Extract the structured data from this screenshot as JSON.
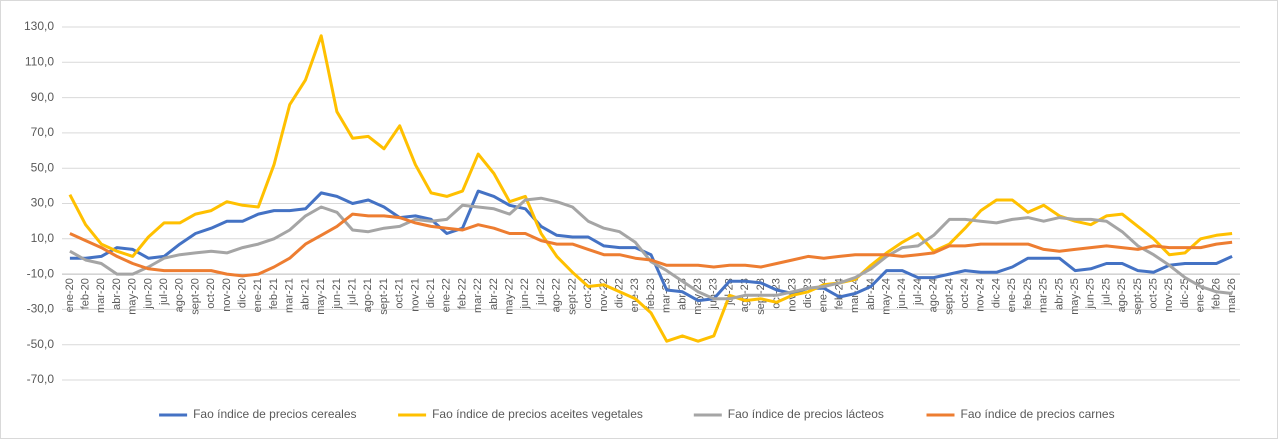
{
  "chart_data": {
    "type": "line",
    "categories": [
      "ene-20",
      "feb-20",
      "mar-20",
      "abr-20",
      "may-20",
      "jun-20",
      "jul-20",
      "ago-20",
      "sept-20",
      "oct-20",
      "nov-20",
      "dic-20",
      "ene-21",
      "feb-21",
      "mar-21",
      "abr-21",
      "may-21",
      "jun-21",
      "jul-21",
      "ago-21",
      "sept-21",
      "oct-21",
      "nov-21",
      "dic-21",
      "ene-22",
      "feb-22",
      "mar-22",
      "abr-22",
      "may-22",
      "jun-22",
      "jul-22",
      "ago-22",
      "sept-22",
      "oct-22",
      "nov-22",
      "dic-22",
      "ene-23",
      "feb-23",
      "mar-23",
      "abr-23",
      "may-23",
      "jun-23",
      "jul-23",
      "ago-23",
      "sept-23",
      "oct-23",
      "nov-23",
      "dic-23",
      "ene-24",
      "feb-24",
      "mar-24",
      "abr-24",
      "may-24",
      "jun-24",
      "jul-24",
      "ago-24",
      "sept-24",
      "oct-24",
      "nov-24",
      "dic-24",
      "ene-25",
      "feb-25",
      "mar-25",
      "abr-25",
      "may-25",
      "jun-25",
      "jul-25",
      "ago-25",
      "sept-25",
      "oct-25",
      "nov-25",
      "dic-25",
      "ene-26",
      "feb-26",
      "mar-26"
    ],
    "series": [
      {
        "name": "Fao índice de precios cereales",
        "color": "#4472c4",
        "values": [
          -1,
          -1,
          0,
          5,
          4,
          -1,
          0,
          7,
          13,
          16,
          20,
          20,
          24,
          26,
          26,
          27,
          36,
          34,
          30,
          32,
          28,
          22,
          23,
          21,
          13,
          16,
          37,
          34,
          29,
          27,
          17,
          12,
          11,
          11,
          6,
          5,
          5,
          1,
          -19,
          -20,
          -25,
          -24,
          -14,
          -14,
          -15,
          -19,
          -21,
          -18,
          -18,
          -23,
          -21,
          -17,
          -8,
          -8,
          -12,
          -12,
          -10,
          -8,
          -9,
          -9,
          -6,
          -1,
          -1,
          -1,
          -8,
          -7,
          -4,
          -4,
          -8,
          -9,
          -5,
          -4,
          -4,
          -4,
          0
        ]
      },
      {
        "name": "Fao índice de precios aceites vegetales",
        "color": "#ffc000",
        "values": [
          35,
          18,
          7,
          3,
          0,
          11,
          19,
          19,
          24,
          26,
          31,
          29,
          28,
          52,
          86,
          100,
          125,
          82,
          67,
          68,
          61,
          74,
          52,
          36,
          34,
          37,
          58,
          47,
          31,
          34,
          13,
          0,
          -9,
          -17,
          -16,
          -20,
          -24,
          -32,
          -48,
          -45,
          -48,
          -45,
          -22,
          -25,
          -24,
          -26,
          -22,
          -20,
          -16,
          -15,
          -13,
          -5,
          2,
          8,
          13,
          3,
          7,
          16,
          26,
          32,
          32,
          25,
          29,
          23,
          20,
          18,
          23,
          24,
          17,
          10,
          1,
          2,
          10,
          12,
          13
        ]
      },
      {
        "name": "Fao índice de precios lácteos",
        "color": "#a5a5a5",
        "values": [
          3,
          -2,
          -4,
          -10,
          -10,
          -6,
          -1,
          1,
          2,
          3,
          2,
          5,
          7,
          10,
          15,
          23,
          28,
          25,
          15,
          14,
          16,
          17,
          21,
          20,
          21,
          29,
          28,
          27,
          24,
          32,
          33,
          31,
          28,
          20,
          16,
          14,
          8,
          -3,
          -8,
          -14,
          -20,
          -24,
          -24,
          -22,
          -22,
          -22,
          -20,
          -18,
          -17,
          -15,
          -12,
          -7,
          0,
          5,
          6,
          12,
          21,
          21,
          20,
          19,
          21,
          22,
          20,
          22,
          21,
          21,
          20,
          14,
          6,
          1,
          -5,
          -12,
          -17,
          -20,
          -21
        ]
      },
      {
        "name": "Fao índice de precios carnes",
        "color": "#ed7d31",
        "values": [
          13,
          9,
          5,
          0,
          -4,
          -7,
          -8,
          -8,
          -8,
          -8,
          -10,
          -11,
          -10,
          -6,
          -1,
          7,
          12,
          17,
          24,
          23,
          23,
          22,
          19,
          17,
          16,
          15,
          18,
          16,
          13,
          13,
          9,
          7,
          7,
          4,
          1,
          1,
          -1,
          -2,
          -5,
          -5,
          -5,
          -6,
          -5,
          -5,
          -6,
          -4,
          -2,
          0,
          -1,
          0,
          1,
          1,
          1,
          0,
          1,
          2,
          6,
          6,
          7,
          7,
          7,
          7,
          4,
          3,
          4,
          5,
          6,
          5,
          4,
          6,
          5,
          5,
          5,
          7,
          8
        ]
      }
    ],
    "ylim": [
      -70,
      130
    ],
    "yticks": [
      {
        "value": -70,
        "label": "-70,0"
      },
      {
        "value": -50,
        "label": "-50,0"
      },
      {
        "value": -30,
        "label": "-30,0"
      },
      {
        "value": -10,
        "label": "-10,0"
      },
      {
        "value": 10,
        "label": "10,0"
      },
      {
        "value": 30,
        "label": "30,0"
      },
      {
        "value": 50,
        "label": "50,0"
      },
      {
        "value": 70,
        "label": "70,0"
      },
      {
        "value": 90,
        "label": "90,0"
      },
      {
        "value": 110,
        "label": "110,0"
      },
      {
        "value": 130,
        "label": "130,0"
      }
    ],
    "category_axis_at": -10,
    "grid": true,
    "legend": "bottom"
  }
}
